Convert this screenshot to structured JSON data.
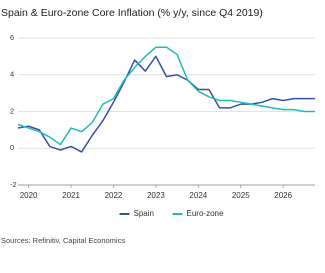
{
  "chart_data": {
    "type": "line",
    "title": "Spain & Euro-zone Core Inflation (% y/y, since Q4 2019)",
    "x": [
      2019.75,
      2020,
      2020.25,
      2020.5,
      2020.75,
      2021,
      2021.25,
      2021.5,
      2021.75,
      2022,
      2022.25,
      2022.5,
      2022.75,
      2023,
      2023.25,
      2023.5,
      2023.75,
      2024,
      2024.25,
      2024.5,
      2024.75,
      2025,
      2025.25,
      2025.5,
      2025.75,
      2026,
      2026.25,
      2026.5,
      2026.75
    ],
    "series": [
      {
        "name": "Spain",
        "color": "#3a4fa8",
        "values": [
          1.1,
          1.2,
          1.0,
          0.1,
          -0.1,
          0.1,
          -0.2,
          0.7,
          1.5,
          2.5,
          3.6,
          4.8,
          4.2,
          5.0,
          3.9,
          4.0,
          3.7,
          3.2,
          3.2,
          2.2,
          2.2,
          2.4,
          2.4,
          2.5,
          2.7,
          2.6,
          2.7,
          2.7,
          2.7
        ]
      },
      {
        "name": "Euro-zone",
        "color": "#1ebdb3",
        "values": [
          1.3,
          1.1,
          0.9,
          0.6,
          0.2,
          1.1,
          0.9,
          1.4,
          2.4,
          2.7,
          3.7,
          4.4,
          5.0,
          5.5,
          5.5,
          5.1,
          3.7,
          3.1,
          2.8,
          2.6,
          2.6,
          2.5,
          2.4,
          2.3,
          2.2,
          2.1,
          2.1,
          2.0,
          2.0
        ]
      }
    ],
    "xlim": [
      2019.75,
      2026.75
    ],
    "xticks": [
      2020,
      2021,
      2022,
      2023,
      2024,
      2025,
      2026
    ],
    "ylim": [
      -2,
      6
    ],
    "yticks": [
      -2,
      0,
      2,
      4,
      6
    ],
    "grid": true,
    "legend": "bottom",
    "source": "Sources: Refinitiv, Capital Economics"
  }
}
